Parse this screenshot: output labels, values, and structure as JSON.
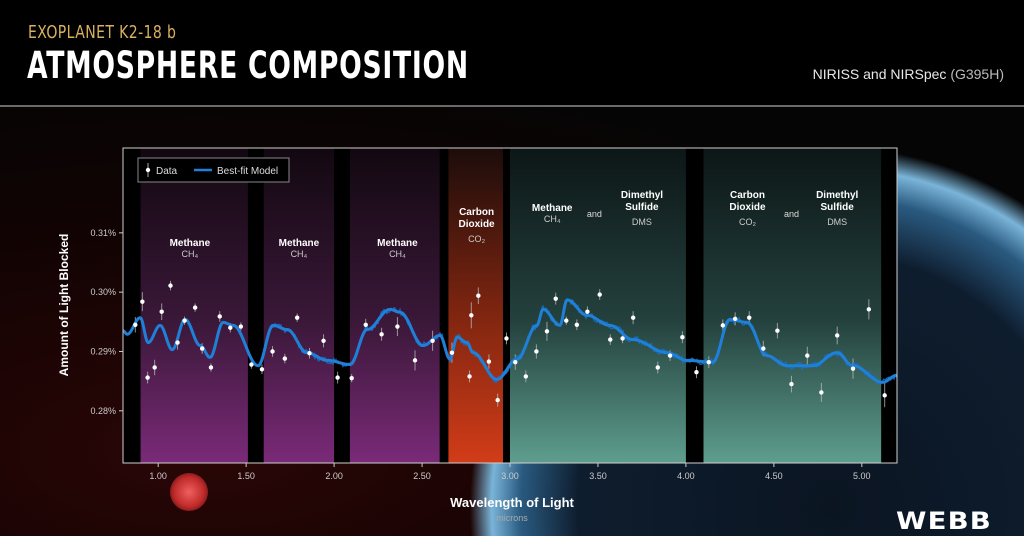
{
  "header": {
    "subtitle": "EXOPLANET K2-18 b",
    "title": "ATMOSPHERE COMPOSITION",
    "instrument": "NIRISS and NIRSpec",
    "instrument_mode": "(G395H)"
  },
  "logo": "WEBB",
  "chart_data": {
    "type": "scatter",
    "xlabel": "Wavelength of Light",
    "xlabel_unit": "microns",
    "ylabel": "Amount of Light Blocked",
    "xlim": [
      0.8,
      5.2
    ],
    "ylim": [
      0.2712,
      0.3243
    ],
    "x_ticks": [
      1.0,
      1.5,
      2.0,
      2.5,
      3.0,
      3.5,
      4.0,
      4.5,
      5.0
    ],
    "x_tick_labels": [
      "1.00",
      "1.50",
      "2.00",
      "2.50",
      "3.00",
      "3.50",
      "4.00",
      "4.50",
      "5.00"
    ],
    "y_ticks": [
      0.28,
      0.29,
      0.3,
      0.31
    ],
    "y_tick_labels": [
      "0.28%",
      "0.29%",
      "0.30%",
      "0.31%"
    ],
    "grid": false,
    "legend": {
      "placement": "top-left",
      "data_label": "Data",
      "model_label": "Best-fit Model"
    },
    "colors": {
      "data": "#ffffff",
      "model": "#1f80d8",
      "methane_band": "#7a2a78",
      "co2_band": "#d23c18",
      "mixed_band": "#5e9e8e"
    },
    "bands": [
      {
        "x": [
          0.9,
          1.51
        ],
        "kind": "methane"
      },
      {
        "x": [
          1.6,
          2.0
        ],
        "kind": "methane"
      },
      {
        "x": [
          2.09,
          2.6
        ],
        "kind": "methane"
      },
      {
        "x": [
          2.65,
          2.96
        ],
        "kind": "co2"
      },
      {
        "x": [
          3.0,
          4.0
        ],
        "kind": "mixed"
      },
      {
        "x": [
          4.1,
          5.11
        ],
        "kind": "mixed"
      }
    ],
    "annotations": [
      {
        "x": 1.18,
        "name": "Methane",
        "formula": "CH₄",
        "row": "low"
      },
      {
        "x": 1.8,
        "name": "Methane",
        "formula": "CH₄",
        "row": "low"
      },
      {
        "x": 2.36,
        "name": "Methane",
        "formula": "CH₄",
        "row": "low"
      },
      {
        "x": 2.81,
        "name": "Carbon Dioxide",
        "formula": "CO₂",
        "row": "mid"
      },
      {
        "x": 3.24,
        "name": "Methane",
        "formula": "CH₄",
        "row": "high"
      },
      {
        "x": 3.48,
        "name": "and",
        "formula": "",
        "row": "and"
      },
      {
        "x": 3.75,
        "name": "Dimethyl Sulfide",
        "formula": "DMS",
        "row": "high2"
      },
      {
        "x": 4.35,
        "name": "Carbon Dioxide",
        "formula": "CO₂",
        "row": "high2"
      },
      {
        "x": 4.6,
        "name": "and",
        "formula": "",
        "row": "and"
      },
      {
        "x": 4.86,
        "name": "Dimethyl Sulfide",
        "formula": "DMS",
        "row": "high2"
      }
    ],
    "series": [
      {
        "name": "Data",
        "x": [
          0.87,
          0.91,
          0.94,
          0.98,
          1.02,
          1.07,
          1.11,
          1.15,
          1.21,
          1.25,
          1.3,
          1.35,
          1.41,
          1.47,
          1.53,
          1.59,
          1.65,
          1.72,
          1.79,
          1.86,
          1.94,
          2.02,
          2.1,
          2.18,
          2.27,
          2.36,
          2.46,
          2.56,
          2.67,
          2.77,
          2.78,
          2.82,
          2.88,
          2.93,
          2.98,
          3.03,
          3.09,
          3.15,
          3.21,
          3.26,
          3.32,
          3.38,
          3.44,
          3.51,
          3.57,
          3.64,
          3.7,
          3.84,
          3.91,
          3.98,
          4.06,
          4.13,
          4.21,
          4.28,
          4.36,
          4.44,
          4.52,
          4.6,
          4.69,
          4.77,
          4.86,
          4.95,
          5.04,
          5.13
        ],
        "y": [
          0.2945,
          0.2984,
          0.2856,
          0.2873,
          0.2967,
          0.3011,
          0.2915,
          0.2952,
          0.2974,
          0.2905,
          0.2873,
          0.2959,
          0.294,
          0.2942,
          0.2878,
          0.287,
          0.29,
          0.2888,
          0.2957,
          0.2897,
          0.2918,
          0.2856,
          0.2855,
          0.2945,
          0.2929,
          0.2942,
          0.2885,
          0.2918,
          0.2898,
          0.2858,
          0.2961,
          0.2994,
          0.2883,
          0.2818,
          0.2922,
          0.2882,
          0.2858,
          0.29,
          0.2934,
          0.2989,
          0.2952,
          0.2945,
          0.2967,
          0.2996,
          0.292,
          0.2922,
          0.2957,
          0.2873,
          0.2893,
          0.2924,
          0.2865,
          0.2882,
          0.2944,
          0.2955,
          0.2957,
          0.2905,
          0.2935,
          0.2845,
          0.2893,
          0.2831,
          0.2927,
          0.2871,
          0.2971,
          0.2826
        ],
        "yerr": [
          0.0013,
          0.0016,
          0.001,
          0.0013,
          0.0014,
          0.0008,
          0.0012,
          0.0007,
          0.0007,
          0.0009,
          0.0007,
          0.0009,
          0.0008,
          0.0007,
          0.0007,
          0.0008,
          0.0009,
          0.0008,
          0.0007,
          0.0009,
          0.0011,
          0.001,
          0.0007,
          0.001,
          0.0011,
          0.0016,
          0.0017,
          0.0017,
          0.0017,
          0.001,
          0.0022,
          0.0014,
          0.0012,
          0.0011,
          0.001,
          0.0013,
          0.001,
          0.0012,
          0.0016,
          0.001,
          0.0007,
          0.0009,
          0.0009,
          0.0009,
          0.0009,
          0.0008,
          0.0011,
          0.001,
          0.0009,
          0.001,
          0.001,
          0.001,
          0.001,
          0.0011,
          0.0011,
          0.0013,
          0.0013,
          0.0014,
          0.0015,
          0.0016,
          0.0015,
          0.0017,
          0.0017,
          0.002
        ]
      },
      {
        "name": "Best-fit Model",
        "x": [
          0.8,
          0.824,
          0.898,
          0.943,
          1.011,
          1.08,
          1.153,
          1.239,
          1.295,
          1.369,
          1.426,
          1.568,
          1.653,
          1.733,
          1.847,
          1.96,
          2.091,
          2.188,
          2.318,
          2.375,
          2.506,
          2.602,
          2.659,
          2.699,
          2.756,
          2.79,
          2.926,
          3.04,
          3.153,
          3.188,
          3.284,
          3.324,
          3.438,
          3.568,
          3.699,
          3.892,
          4.006,
          4.153,
          4.25,
          4.347,
          4.46,
          4.574,
          4.722,
          4.858,
          4.949,
          5.119,
          5.199
        ],
        "y": [
          0.2935,
          0.2929,
          0.2957,
          0.2915,
          0.2944,
          0.2903,
          0.2954,
          0.291,
          0.289,
          0.2949,
          0.2944,
          0.2876,
          0.2944,
          0.2937,
          0.2898,
          0.2885,
          0.2878,
          0.2937,
          0.2971,
          0.2966,
          0.291,
          0.2927,
          0.2887,
          0.2924,
          0.2915,
          0.2898,
          0.2853,
          0.2887,
          0.2944,
          0.2971,
          0.2944,
          0.2987,
          0.2961,
          0.2944,
          0.292,
          0.2898,
          0.2885,
          0.2882,
          0.2954,
          0.2949,
          0.2893,
          0.2876,
          0.2876,
          0.2898,
          0.2876,
          0.2848,
          0.286
        ]
      }
    ]
  }
}
